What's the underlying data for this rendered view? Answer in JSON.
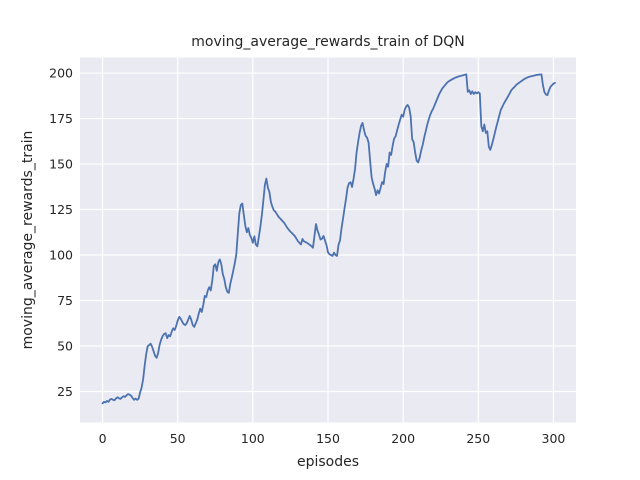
{
  "figure": {
    "title": "moving_average_rewards_train of DQN",
    "xlabel": "episodes",
    "ylabel": "moving_average_rewards_train"
  },
  "colors": {
    "figure_background": "#ffffff",
    "axes_background": "#eaeaf2",
    "grid": "#ffffff",
    "line": "#4c72b0",
    "text": "#262626"
  },
  "chart_data": {
    "type": "line",
    "title": "moving_average_rewards_train of DQN",
    "xlabel": "episodes",
    "ylabel": "moving_average_rewards_train",
    "x_ticks": [
      0,
      50,
      100,
      150,
      200,
      250,
      300
    ],
    "y_ticks": [
      25,
      50,
      75,
      100,
      125,
      150,
      175,
      200
    ],
    "xlim": [
      -15,
      315
    ],
    "ylim": [
      8,
      208.5
    ],
    "grid": true,
    "legend": false,
    "series": [
      {
        "name": "moving_average_rewards_train",
        "color": "#4c72b0",
        "points": [
          [
            0,
            18.5
          ],
          [
            1,
            19.3
          ],
          [
            2,
            19.0
          ],
          [
            3,
            19.8
          ],
          [
            4,
            19.3
          ],
          [
            5,
            20.6
          ],
          [
            6,
            20.9
          ],
          [
            7,
            20.4
          ],
          [
            8,
            20.2
          ],
          [
            9,
            21.2
          ],
          [
            10,
            21.8
          ],
          [
            11,
            21.2
          ],
          [
            12,
            20.9
          ],
          [
            13,
            21.8
          ],
          [
            14,
            22.4
          ],
          [
            15,
            22.0
          ],
          [
            16,
            22.9
          ],
          [
            17,
            23.6
          ],
          [
            18,
            23.2
          ],
          [
            19,
            22.7
          ],
          [
            20,
            21.4
          ],
          [
            21,
            20.4
          ],
          [
            22,
            21.1
          ],
          [
            23,
            20.4
          ],
          [
            24,
            21.0
          ],
          [
            25,
            24.5
          ],
          [
            26,
            27.2
          ],
          [
            27,
            31.7
          ],
          [
            28,
            39.0
          ],
          [
            29,
            45.3
          ],
          [
            30,
            49.8
          ],
          [
            31,
            50.5
          ],
          [
            32,
            51.3
          ],
          [
            33,
            49.5
          ],
          [
            34,
            47.0
          ],
          [
            35,
            44.5
          ],
          [
            36,
            43.5
          ],
          [
            37,
            46.2
          ],
          [
            38,
            50.7
          ],
          [
            39,
            53.5
          ],
          [
            40,
            55.5
          ],
          [
            41,
            56.6
          ],
          [
            42,
            57.0
          ],
          [
            43,
            54.3
          ],
          [
            44,
            56.0
          ],
          [
            45,
            55.3
          ],
          [
            46,
            57.9
          ],
          [
            47,
            59.7
          ],
          [
            48,
            58.8
          ],
          [
            49,
            61.0
          ],
          [
            50,
            64.0
          ],
          [
            51,
            66.0
          ],
          [
            52,
            65.0
          ],
          [
            53,
            63.3
          ],
          [
            54,
            62.0
          ],
          [
            55,
            61.5
          ],
          [
            56,
            62.5
          ],
          [
            57,
            64.5
          ],
          [
            58,
            66.5
          ],
          [
            59,
            64.5
          ],
          [
            60,
            61.5
          ],
          [
            61,
            60.5
          ],
          [
            62,
            62.4
          ],
          [
            63,
            64.5
          ],
          [
            64,
            67.8
          ],
          [
            65,
            70.5
          ],
          [
            66,
            68.7
          ],
          [
            67,
            72.5
          ],
          [
            68,
            77.5
          ],
          [
            69,
            76.9
          ],
          [
            70,
            80.5
          ],
          [
            71,
            82.3
          ],
          [
            72,
            80.5
          ],
          [
            73,
            85.9
          ],
          [
            74,
            94.0
          ],
          [
            75,
            94.9
          ],
          [
            76,
            91.3
          ],
          [
            77,
            96.0
          ],
          [
            78,
            97.6
          ],
          [
            79,
            95.0
          ],
          [
            80,
            89.5
          ],
          [
            81,
            86.8
          ],
          [
            82,
            82.3
          ],
          [
            83,
            79.8
          ],
          [
            84,
            79.2
          ],
          [
            85,
            84.1
          ],
          [
            86,
            87.7
          ],
          [
            87,
            91.5
          ],
          [
            88,
            95.5
          ],
          [
            89,
            100.5
          ],
          [
            90,
            112.0
          ],
          [
            91,
            123.0
          ],
          [
            92,
            127.5
          ],
          [
            93,
            128.3
          ],
          [
            94,
            122.0
          ],
          [
            95,
            116.0
          ],
          [
            96,
            112.5
          ],
          [
            97,
            114.8
          ],
          [
            98,
            111.0
          ],
          [
            99,
            109.4
          ],
          [
            100,
            106.7
          ],
          [
            101,
            110.3
          ],
          [
            102,
            105.7
          ],
          [
            103,
            104.8
          ],
          [
            104,
            110.0
          ],
          [
            105,
            115.5
          ],
          [
            106,
            122.0
          ],
          [
            107,
            130.0
          ],
          [
            108,
            138.5
          ],
          [
            109,
            142.0
          ],
          [
            110,
            137.0
          ],
          [
            111,
            134.7
          ],
          [
            112,
            129.2
          ],
          [
            113,
            126.5
          ],
          [
            114,
            124.5
          ],
          [
            115,
            123.8
          ],
          [
            117,
            121.1
          ],
          [
            119,
            119.3
          ],
          [
            121,
            117.5
          ],
          [
            123,
            114.8
          ],
          [
            125,
            112.8
          ],
          [
            126,
            112.1
          ],
          [
            128,
            110.3
          ],
          [
            130,
            107.6
          ],
          [
            132,
            105.8
          ],
          [
            133,
            108.8
          ],
          [
            134,
            107.5
          ],
          [
            136,
            106.7
          ],
          [
            138,
            105.5
          ],
          [
            139,
            104.9
          ],
          [
            140,
            104.0
          ],
          [
            141,
            110.5
          ],
          [
            142,
            117.0
          ],
          [
            143,
            113.5
          ],
          [
            144,
            111.2
          ],
          [
            145,
            108.5
          ],
          [
            146,
            109.0
          ],
          [
            147,
            110.5
          ],
          [
            148,
            108.0
          ],
          [
            149,
            105.4
          ],
          [
            150,
            101.5
          ],
          [
            151,
            100.4
          ],
          [
            152,
            100.0
          ],
          [
            153,
            99.5
          ],
          [
            154,
            101.3
          ],
          [
            155,
            100.0
          ],
          [
            156,
            99.5
          ],
          [
            157,
            105.7
          ],
          [
            158,
            108.0
          ],
          [
            159,
            114.8
          ],
          [
            160,
            120.0
          ],
          [
            161,
            125.6
          ],
          [
            162,
            131.0
          ],
          [
            163,
            137.0
          ],
          [
            164,
            139.5
          ],
          [
            165,
            140.0
          ],
          [
            166,
            137.4
          ],
          [
            167,
            141.9
          ],
          [
            168,
            147.3
          ],
          [
            169,
            156.3
          ],
          [
            170,
            162.0
          ],
          [
            171,
            167.0
          ],
          [
            172,
            171.0
          ],
          [
            173,
            172.6
          ],
          [
            174,
            168.5
          ],
          [
            175,
            165.5
          ],
          [
            176,
            164.5
          ],
          [
            177,
            161.8
          ],
          [
            178,
            152.0
          ],
          [
            179,
            142.8
          ],
          [
            180,
            139.2
          ],
          [
            181,
            136.5
          ],
          [
            182,
            132.9
          ],
          [
            183,
            135.6
          ],
          [
            184,
            133.8
          ],
          [
            185,
            137.0
          ],
          [
            186,
            140.1
          ],
          [
            187,
            139.0
          ],
          [
            188,
            145.5
          ],
          [
            189,
            150.0
          ],
          [
            190,
            148.5
          ],
          [
            191,
            156.3
          ],
          [
            192,
            155.0
          ],
          [
            193,
            160.0
          ],
          [
            194,
            164.0
          ],
          [
            195,
            165.3
          ],
          [
            196,
            168.5
          ],
          [
            197,
            171.6
          ],
          [
            198,
            174.4
          ],
          [
            199,
            177.1
          ],
          [
            200,
            176.0
          ],
          [
            201,
            179.8
          ],
          [
            202,
            181.6
          ],
          [
            203,
            182.5
          ],
          [
            204,
            181.0
          ],
          [
            205,
            176.2
          ],
          [
            206,
            163.6
          ],
          [
            207,
            162.0
          ],
          [
            208,
            156.3
          ],
          [
            209,
            151.8
          ],
          [
            210,
            150.9
          ],
          [
            211,
            153.5
          ],
          [
            212,
            157.5
          ],
          [
            213,
            160.5
          ],
          [
            214,
            164.5
          ],
          [
            215,
            168.0
          ],
          [
            216,
            171.5
          ],
          [
            217,
            174.4
          ],
          [
            218,
            177.0
          ],
          [
            219,
            179.0
          ],
          [
            220,
            180.5
          ],
          [
            221,
            182.5
          ],
          [
            222,
            184.5
          ],
          [
            223,
            186.5
          ],
          [
            224,
            188.5
          ],
          [
            225,
            190.0
          ],
          [
            226,
            191.5
          ],
          [
            227,
            192.5
          ],
          [
            228,
            193.5
          ],
          [
            229,
            194.5
          ],
          [
            230,
            195.3
          ],
          [
            232,
            196.3
          ],
          [
            234,
            197.2
          ],
          [
            236,
            197.9
          ],
          [
            238,
            198.4
          ],
          [
            240,
            198.8
          ],
          [
            241,
            199.1
          ],
          [
            242,
            199.3
          ],
          [
            243,
            189.7
          ],
          [
            244,
            190.5
          ],
          [
            245,
            188.5
          ],
          [
            246,
            190.0
          ],
          [
            247,
            188.5
          ],
          [
            248,
            189.5
          ],
          [
            249,
            188.8
          ],
          [
            250,
            189.5
          ],
          [
            251,
            188.8
          ],
          [
            252,
            170.8
          ],
          [
            253,
            168.0
          ],
          [
            254,
            171.7
          ],
          [
            255,
            167.1
          ],
          [
            256,
            168.0
          ],
          [
            257,
            159.5
          ],
          [
            258,
            157.8
          ],
          [
            259,
            160.5
          ],
          [
            260,
            163.6
          ],
          [
            261,
            167.1
          ],
          [
            262,
            170.5
          ],
          [
            263,
            173.5
          ],
          [
            264,
            176.8
          ],
          [
            265,
            179.8
          ],
          [
            266,
            181.5
          ],
          [
            267,
            183.2
          ],
          [
            268,
            184.7
          ],
          [
            269,
            186.1
          ],
          [
            270,
            187.5
          ],
          [
            271,
            189.0
          ],
          [
            272,
            190.6
          ],
          [
            273,
            191.5
          ],
          [
            274,
            192.3
          ],
          [
            275,
            193.3
          ],
          [
            276,
            194.0
          ],
          [
            277,
            194.6
          ],
          [
            278,
            195.2
          ],
          [
            279,
            195.8
          ],
          [
            280,
            196.4
          ],
          [
            281,
            196.9
          ],
          [
            282,
            197.3
          ],
          [
            283,
            197.7
          ],
          [
            284,
            198.0
          ],
          [
            285,
            198.2
          ],
          [
            286,
            198.4
          ],
          [
            287,
            198.6
          ],
          [
            288,
            198.8
          ],
          [
            289,
            199.0
          ],
          [
            290,
            199.1
          ],
          [
            291,
            199.2
          ],
          [
            292,
            199.3
          ],
          [
            293,
            193.4
          ],
          [
            294,
            189.5
          ],
          [
            295,
            188.2
          ],
          [
            296,
            187.9
          ],
          [
            297,
            190.5
          ],
          [
            298,
            192.4
          ],
          [
            299,
            193.3
          ],
          [
            300,
            194.2
          ],
          [
            301,
            194.6
          ]
        ]
      }
    ]
  }
}
